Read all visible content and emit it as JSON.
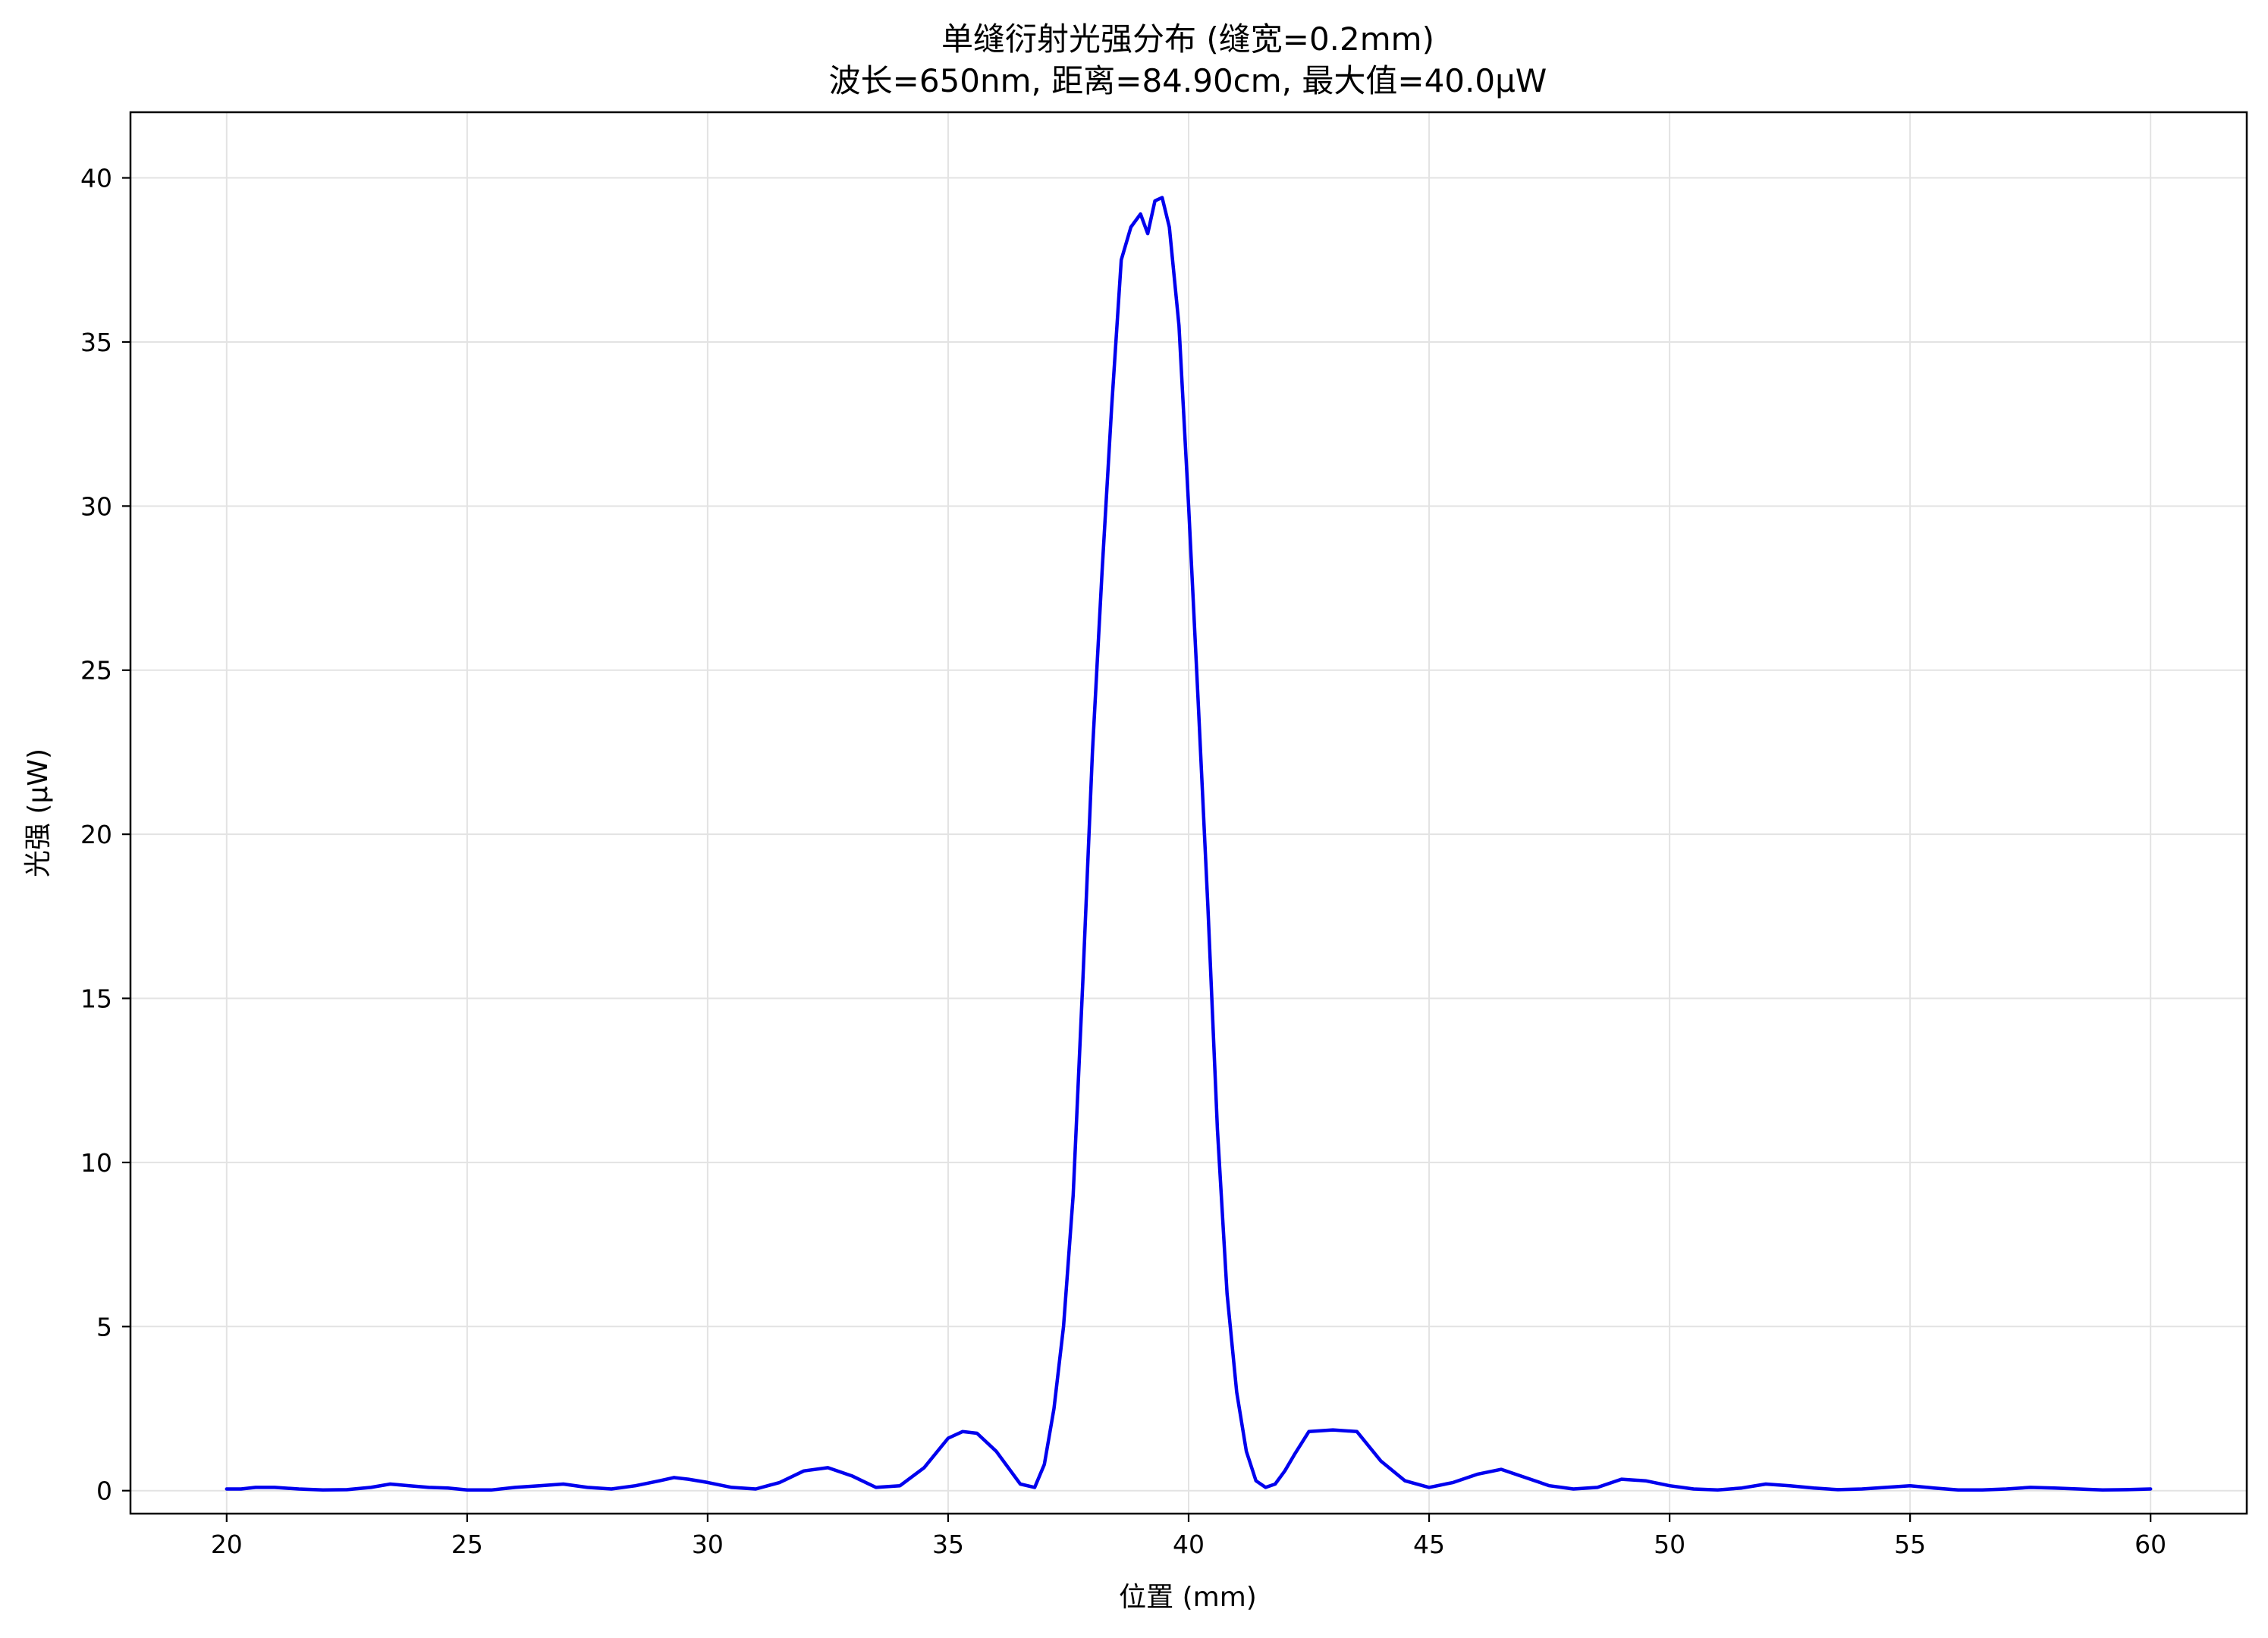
{
  "chart_data": {
    "type": "line",
    "title_line1": "单缝衍射光强分布 (缝宽=0.2mm)",
    "title_line2": "波长=650nm, 距离=84.90cm, 最大值=40.0μW",
    "xlabel": "位置 (mm)",
    "ylabel": "光强 (μW)",
    "xlim": [
      18,
      62
    ],
    "ylim": [
      -0.7,
      42
    ],
    "xticks": [
      20,
      25,
      30,
      35,
      40,
      45,
      50,
      55,
      60
    ],
    "yticks": [
      0,
      5,
      10,
      15,
      20,
      25,
      30,
      35,
      40
    ],
    "grid": true,
    "line_color": "#0000ee",
    "series": [
      {
        "x": [
          20.0,
          20.3,
          20.6,
          21.0,
          21.5,
          22.0,
          22.5,
          23.0,
          23.4,
          23.8,
          24.2,
          24.6,
          25.0,
          25.5,
          26.0,
          26.5,
          27.0,
          27.5,
          28.0,
          28.5,
          29.0,
          29.3,
          29.6,
          30.0,
          30.5,
          31.0,
          31.5,
          32.0,
          32.5,
          33.0,
          33.5,
          34.0,
          34.5,
          35.0,
          35.3,
          35.6,
          36.0,
          36.5,
          36.8,
          37.0,
          37.2,
          37.4,
          37.6,
          37.8,
          38.0,
          38.2,
          38.4,
          38.6,
          38.8,
          39.0,
          39.15,
          39.3,
          39.45,
          39.6,
          39.8,
          40.0,
          40.2,
          40.4,
          40.6,
          40.8,
          41.0,
          41.2,
          41.4,
          41.6,
          41.8,
          42.0,
          42.2,
          42.5,
          43.0,
          43.5,
          44.0,
          44.5,
          45.0,
          45.5,
          46.0,
          46.5,
          47.0,
          47.5,
          48.0,
          48.5,
          49.0,
          49.5,
          50.0,
          50.5,
          51.0,
          51.5,
          52.0,
          52.5,
          53.0,
          53.5,
          54.0,
          54.5,
          55.0,
          55.5,
          56.0,
          56.5,
          57.0,
          57.5,
          58.0,
          58.5,
          59.0,
          59.5,
          60.0
        ],
        "y": [
          0.05,
          0.05,
          0.1,
          0.1,
          0.05,
          0.02,
          0.03,
          0.1,
          0.2,
          0.15,
          0.1,
          0.08,
          0.02,
          0.02,
          0.1,
          0.15,
          0.2,
          0.1,
          0.05,
          0.15,
          0.3,
          0.4,
          0.35,
          0.25,
          0.1,
          0.05,
          0.25,
          0.6,
          0.7,
          0.45,
          0.1,
          0.15,
          0.7,
          1.6,
          1.8,
          1.75,
          1.2,
          0.2,
          0.1,
          0.8,
          2.5,
          5.0,
          9.0,
          15.5,
          22.5,
          28.0,
          33.0,
          37.5,
          38.5,
          38.9,
          38.3,
          39.3,
          39.4,
          38.5,
          35.5,
          30.0,
          24.0,
          17.8,
          11.0,
          6.0,
          3.0,
          1.2,
          0.3,
          0.1,
          0.2,
          0.6,
          1.1,
          1.8,
          1.85,
          1.8,
          0.9,
          0.3,
          0.1,
          0.25,
          0.5,
          0.65,
          0.4,
          0.15,
          0.05,
          0.1,
          0.35,
          0.3,
          0.15,
          0.05,
          0.02,
          0.08,
          0.2,
          0.15,
          0.08,
          0.03,
          0.05,
          0.1,
          0.15,
          0.08,
          0.02,
          0.02,
          0.05,
          0.1,
          0.08,
          0.05,
          0.02,
          0.03,
          0.05
        ]
      }
    ]
  }
}
